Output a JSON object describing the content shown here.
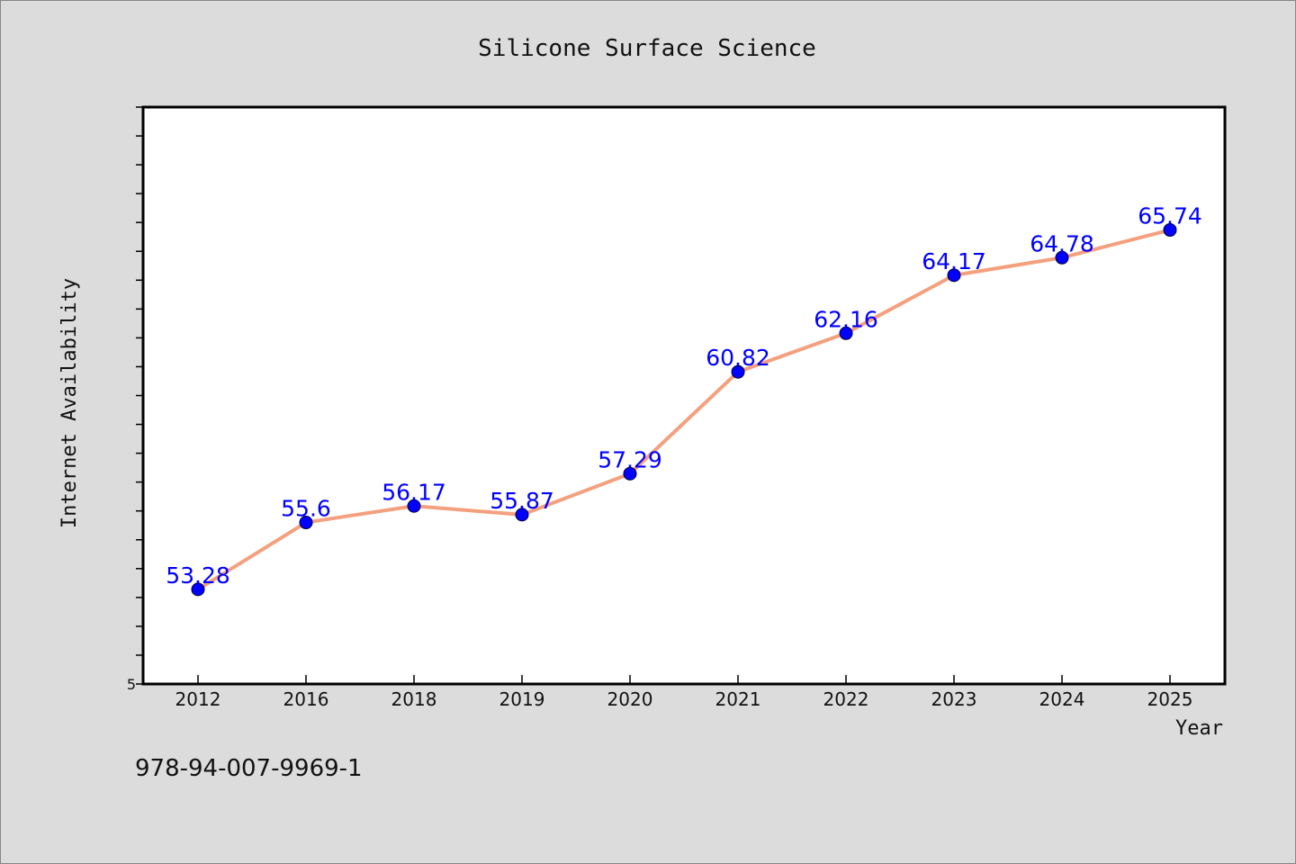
{
  "chart_data": {
    "type": "line",
    "title": "Silicone Surface Science",
    "xlabel": "Year",
    "ylabel": "Internet Availability",
    "categories": [
      "2012",
      "2016",
      "2018",
      "2019",
      "2020",
      "2021",
      "2022",
      "2023",
      "2024",
      "2025"
    ],
    "series": [
      {
        "values": [
          53.28,
          55.6,
          56.17,
          55.87,
          57.29,
          60.82,
          62.16,
          64.17,
          64.78,
          65.74
        ]
      }
    ],
    "y_tick_labels": [
      "5"
    ],
    "ylim": [
      50.0,
      70.0
    ],
    "grid": false,
    "line_color": "#f4a07e",
    "marker_color": "#0000ff",
    "label_color": "#0000ff"
  },
  "footnote": "978-94-007-9969-1"
}
